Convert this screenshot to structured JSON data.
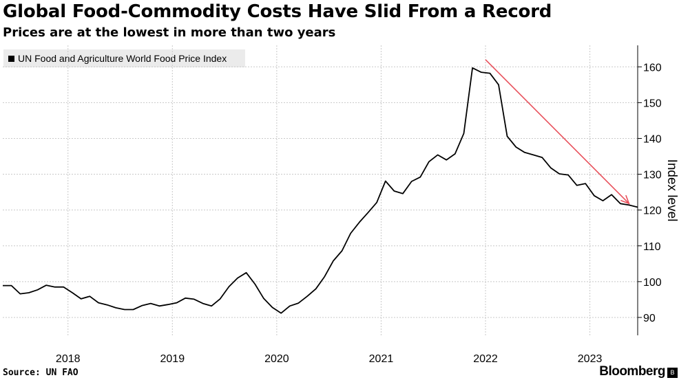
{
  "header": {
    "title": "Global Food-Commodity Costs Have Slid From a Record",
    "subtitle": "Prices are at the lowest in more than two years"
  },
  "legend": {
    "label": "UN Food and Agriculture World Food Price Index"
  },
  "footer": {
    "source": "Source: UN FAO",
    "brand": "Bloomberg"
  },
  "colors": {
    "line": "#000000",
    "arrow": "#e8505b",
    "grid": "#c8c8c8"
  },
  "chart_data": {
    "type": "line",
    "title": "Global Food-Commodity Costs Have Slid From a Record",
    "subtitle": "Prices are at the lowest in more than two years",
    "ylabel": "Index level",
    "ylim": [
      85,
      166
    ],
    "yticks": [
      90,
      100,
      110,
      120,
      130,
      140,
      150,
      160
    ],
    "xlim": [
      2017.375,
      2023.458
    ],
    "xticks": [
      {
        "value": 2018.0,
        "label": "2018"
      },
      {
        "value": 2019.0,
        "label": "2019"
      },
      {
        "value": 2020.0,
        "label": "2020"
      },
      {
        "value": 2021.0,
        "label": "2021"
      },
      {
        "value": 2022.0,
        "label": "2022"
      },
      {
        "value": 2023.0,
        "label": "2023"
      }
    ],
    "series": [
      {
        "name": "UN Food and Agriculture World Food Price Index",
        "x": [
          2017.375,
          2017.458,
          2017.542,
          2017.625,
          2017.708,
          2017.792,
          2017.875,
          2017.958,
          2018.042,
          2018.125,
          2018.208,
          2018.292,
          2018.375,
          2018.458,
          2018.542,
          2018.625,
          2018.708,
          2018.792,
          2018.875,
          2018.958,
          2019.042,
          2019.125,
          2019.208,
          2019.292,
          2019.375,
          2019.458,
          2019.542,
          2019.625,
          2019.708,
          2019.792,
          2019.875,
          2019.958,
          2020.042,
          2020.125,
          2020.208,
          2020.292,
          2020.375,
          2020.458,
          2020.542,
          2020.625,
          2020.708,
          2020.792,
          2020.875,
          2020.958,
          2021.042,
          2021.125,
          2021.208,
          2021.292,
          2021.375,
          2021.458,
          2021.542,
          2021.625,
          2021.708,
          2021.792,
          2021.875,
          2021.958,
          2022.042,
          2022.125,
          2022.208,
          2022.292,
          2022.375,
          2022.458,
          2022.542,
          2022.625,
          2022.708,
          2022.792,
          2022.875,
          2022.958,
          2023.042,
          2023.125,
          2023.208,
          2023.292,
          2023.375,
          2023.458
        ],
        "values": [
          98.9,
          98.9,
          96.6,
          96.9,
          97.7,
          99.0,
          98.5,
          98.5,
          96.9,
          95.2,
          95.9,
          94.1,
          93.5,
          92.7,
          92.2,
          92.2,
          93.3,
          93.9,
          93.2,
          93.6,
          94.1,
          95.4,
          95.1,
          93.9,
          93.2,
          95.2,
          98.6,
          101.0,
          102.5,
          99.3,
          95.3,
          92.8,
          91.2,
          93.2,
          94.0,
          95.9,
          98.0,
          101.4,
          105.8,
          108.6,
          113.5,
          116.6,
          119.3,
          122.1,
          128.1,
          125.3,
          124.6,
          128.0,
          129.2,
          133.5,
          135.4,
          134.0,
          135.7,
          141.4,
          159.7,
          158.5,
          158.2,
          155.0,
          140.6,
          137.6,
          136.1,
          135.4,
          134.7,
          131.8,
          130.1,
          129.8,
          126.9,
          127.4,
          124.0,
          122.6,
          124.3,
          121.8,
          121.4,
          120.8
        ]
      }
    ],
    "annotations": [
      {
        "type": "arrow",
        "from": {
          "x": 2022.0,
          "y": 162.0
        },
        "to": {
          "x": 2023.375,
          "y": 121.8
        }
      }
    ]
  }
}
